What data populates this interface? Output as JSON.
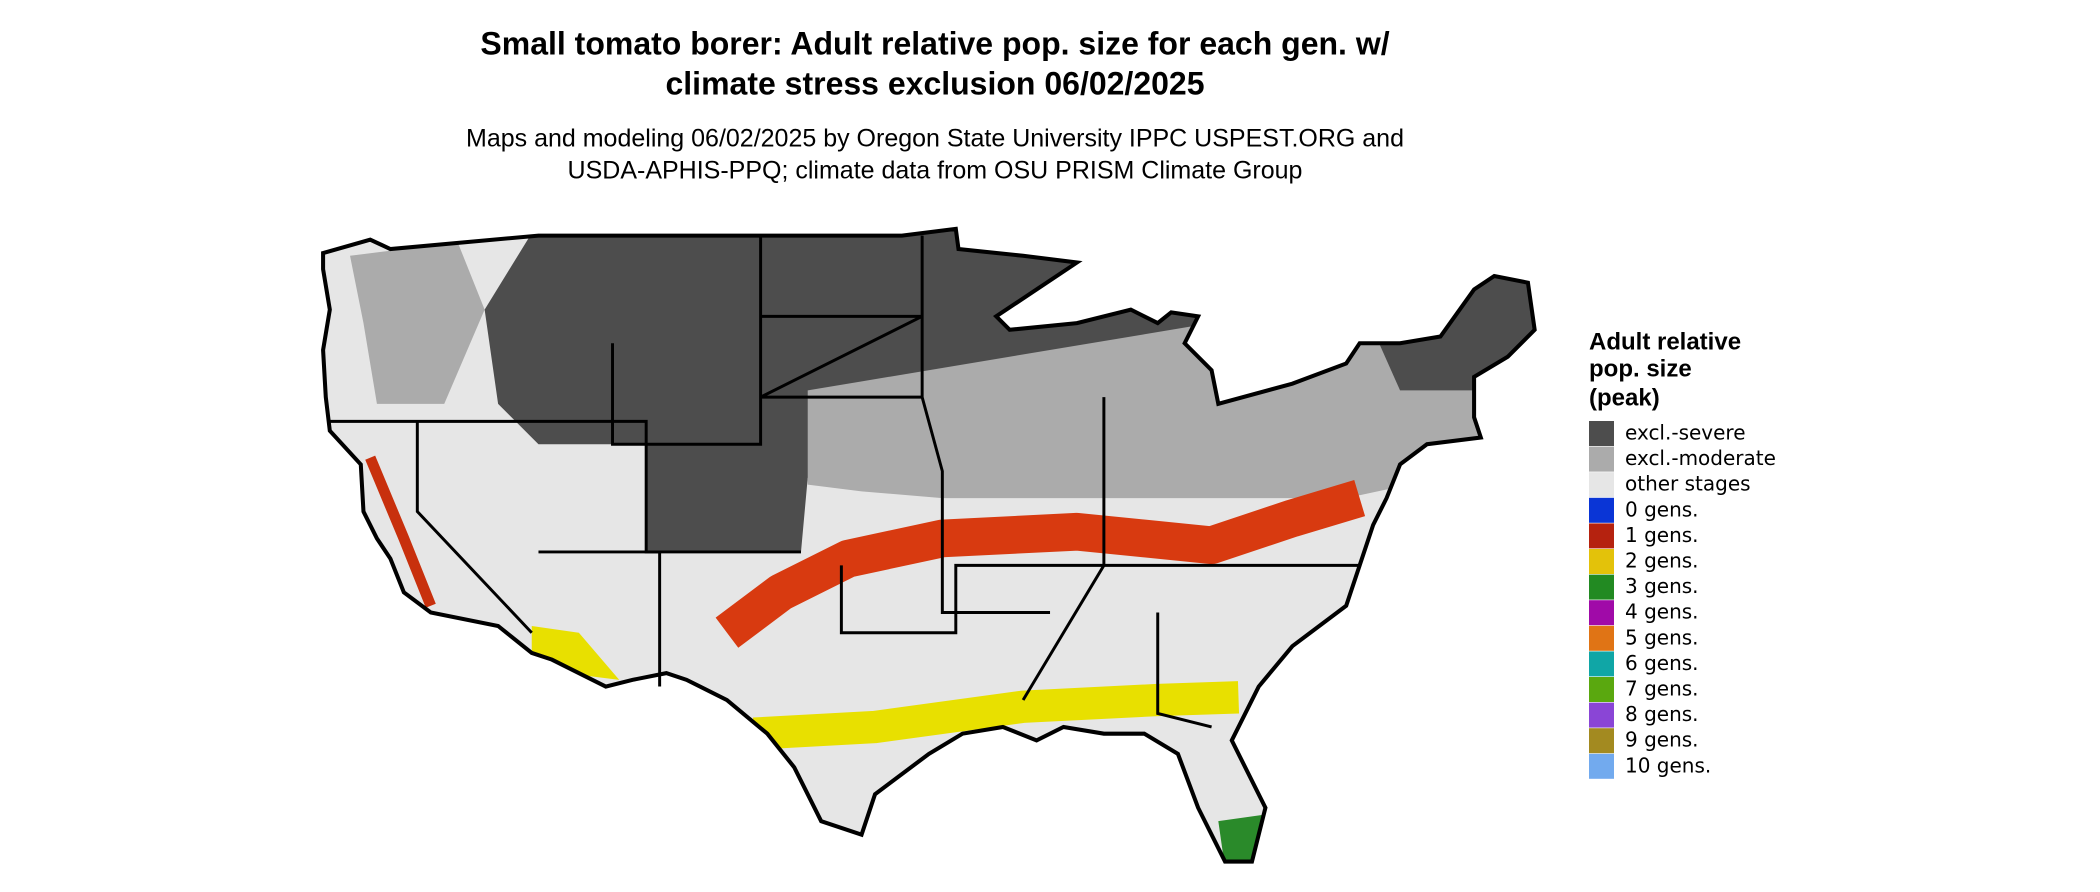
{
  "title": [
    "Small tomato borer: Adult relative pop. size for each gen. w/",
    "climate stress exclusion 06/02/2025"
  ],
  "subtitle": [
    "Maps and modeling 06/02/2025 by Oregon State University IPPC USPEST.ORG and",
    "USDA-APHIS-PPQ; climate data from OSU PRISM Climate Group"
  ],
  "legend": {
    "title": [
      "Adult relative",
      "pop. size",
      "(peak)"
    ],
    "items": [
      {
        "label": "excl.-severe",
        "color": "#4d4d4d"
      },
      {
        "label": "excl.-moderate",
        "color": "#ababab"
      },
      {
        "label": "other stages",
        "color": "#e6e6e6"
      },
      {
        "label": "0 gens.",
        "color": "#0a35d6"
      },
      {
        "label": "1 gens.",
        "color": "#b5220f"
      },
      {
        "label": "2 gens.",
        "color": "#e3c20a"
      },
      {
        "label": "3 gens.",
        "color": "#228a22"
      },
      {
        "label": "4 gens.",
        "color": "#a00aa8"
      },
      {
        "label": "5 gens.",
        "color": "#e07415"
      },
      {
        "label": "6 gens.",
        "color": "#10a6a6"
      },
      {
        "label": "7 gens.",
        "color": "#5aa80f"
      },
      {
        "label": "8 gens.",
        "color": "#8a45d6"
      },
      {
        "label": "9 gens.",
        "color": "#a38a20"
      },
      {
        "label": "10 gens.",
        "color": "#72aaee"
      }
    ]
  }
}
